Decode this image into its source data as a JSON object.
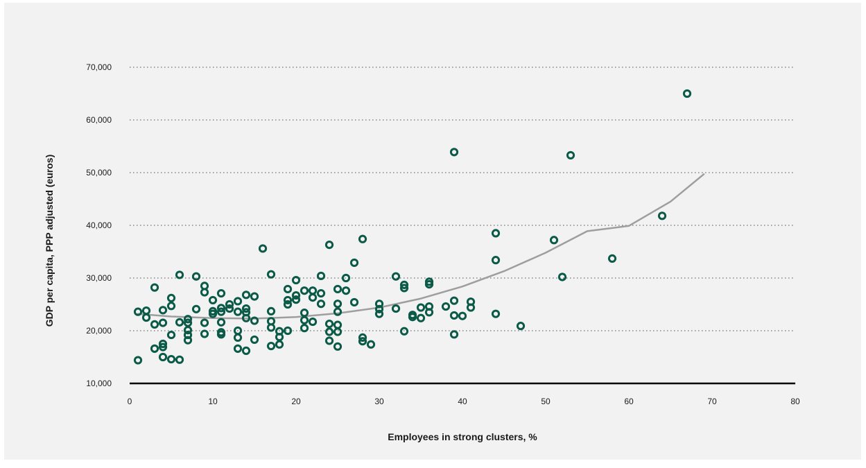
{
  "chart_data": {
    "type": "scatter",
    "xlabel": "Employees in strong clusters, %",
    "ylabel": "GDP per capita, PPP adjusted (euros)",
    "xlim": [
      0,
      80
    ],
    "ylim": [
      10000,
      70000
    ],
    "x_ticks": [
      0,
      10,
      20,
      30,
      40,
      50,
      60,
      70,
      80
    ],
    "y_ticks": [
      10000,
      20000,
      30000,
      40000,
      50000,
      60000,
      70000
    ],
    "x_tick_labels": [
      "0",
      "10",
      "20",
      "30",
      "40",
      "50",
      "60",
      "70",
      "80"
    ],
    "y_tick_labels": [
      "10,000",
      "20,000",
      "30,000",
      "40,000",
      "50,000",
      "60,000",
      "70,000"
    ],
    "grid": "horizontal dotted",
    "colors": {
      "points": "#0b5a47",
      "trend": "#9e9e9e",
      "panel": "#f2f2f2"
    },
    "series": [
      {
        "values": [
          [
            1,
            23600
          ],
          [
            1,
            14400
          ],
          [
            2,
            23800
          ],
          [
            2,
            22500
          ],
          [
            3,
            28200
          ],
          [
            3,
            21200
          ],
          [
            3,
            16600
          ],
          [
            4,
            23900
          ],
          [
            4,
            21500
          ],
          [
            4,
            17500
          ],
          [
            4,
            16900
          ],
          [
            4,
            15000
          ],
          [
            5,
            26200
          ],
          [
            5,
            24700
          ],
          [
            5,
            19200
          ],
          [
            5,
            14600
          ],
          [
            6,
            30600
          ],
          [
            6,
            21600
          ],
          [
            6,
            14500
          ],
          [
            7,
            22200
          ],
          [
            7,
            21500
          ],
          [
            7,
            20100
          ],
          [
            7,
            19200
          ],
          [
            7,
            18200
          ],
          [
            8,
            30300
          ],
          [
            8,
            24100
          ],
          [
            9,
            28500
          ],
          [
            9,
            27300
          ],
          [
            9,
            21500
          ],
          [
            9,
            19400
          ],
          [
            10,
            25800
          ],
          [
            10,
            23700
          ],
          [
            10,
            23200
          ],
          [
            11,
            27100
          ],
          [
            11,
            24300
          ],
          [
            11,
            23600
          ],
          [
            11,
            21600
          ],
          [
            11,
            19700
          ],
          [
            11,
            19300
          ],
          [
            12,
            25000
          ],
          [
            12,
            24200
          ],
          [
            13,
            25600
          ],
          [
            13,
            23600
          ],
          [
            13,
            20000
          ],
          [
            13,
            18700
          ],
          [
            13,
            16600
          ],
          [
            14,
            26800
          ],
          [
            14,
            24200
          ],
          [
            14,
            23500
          ],
          [
            14,
            22400
          ],
          [
            14,
            16200
          ],
          [
            15,
            26500
          ],
          [
            15,
            21900
          ],
          [
            15,
            18300
          ],
          [
            16,
            35600
          ],
          [
            17,
            30700
          ],
          [
            17,
            23700
          ],
          [
            17,
            21800
          ],
          [
            17,
            20600
          ],
          [
            17,
            17100
          ],
          [
            18,
            19900
          ],
          [
            18,
            18800
          ],
          [
            18,
            17400
          ],
          [
            19,
            27900
          ],
          [
            19,
            25800
          ],
          [
            19,
            25000
          ],
          [
            19,
            20000
          ],
          [
            20,
            29600
          ],
          [
            20,
            26700
          ],
          [
            20,
            25900
          ],
          [
            21,
            27600
          ],
          [
            21,
            23400
          ],
          [
            21,
            22000
          ],
          [
            21,
            20500
          ],
          [
            22,
            27600
          ],
          [
            22,
            26300
          ],
          [
            22,
            21700
          ],
          [
            23,
            30400
          ],
          [
            23,
            27100
          ],
          [
            23,
            25100
          ],
          [
            24,
            36300
          ],
          [
            24,
            21300
          ],
          [
            24,
            19800
          ],
          [
            24,
            18100
          ],
          [
            25,
            27900
          ],
          [
            25,
            25100
          ],
          [
            25,
            23600
          ],
          [
            25,
            21100
          ],
          [
            25,
            19800
          ],
          [
            25,
            17000
          ],
          [
            26,
            30000
          ],
          [
            26,
            27600
          ],
          [
            27,
            32900
          ],
          [
            27,
            25400
          ],
          [
            28,
            37400
          ],
          [
            28,
            18700
          ],
          [
            28,
            18000
          ],
          [
            29,
            17400
          ],
          [
            30,
            25100
          ],
          [
            30,
            24100
          ],
          [
            30,
            23200
          ],
          [
            32,
            30300
          ],
          [
            32,
            24200
          ],
          [
            33,
            28700
          ],
          [
            33,
            28100
          ],
          [
            33,
            19900
          ],
          [
            34,
            23000
          ],
          [
            34,
            22600
          ],
          [
            35,
            24400
          ],
          [
            35,
            22400
          ],
          [
            36,
            29300
          ],
          [
            36,
            28800
          ],
          [
            36,
            24600
          ],
          [
            36,
            23500
          ],
          [
            38,
            24600
          ],
          [
            39,
            53900
          ],
          [
            39,
            25700
          ],
          [
            39,
            22900
          ],
          [
            39,
            19300
          ],
          [
            40,
            22800
          ],
          [
            41,
            25500
          ],
          [
            41,
            24400
          ],
          [
            44,
            38500
          ],
          [
            44,
            33400
          ],
          [
            44,
            23200
          ],
          [
            47,
            20900
          ],
          [
            51,
            37200
          ],
          [
            52,
            30200
          ],
          [
            53,
            53300
          ],
          [
            58,
            33700
          ],
          [
            64,
            41800
          ],
          [
            67,
            65000
          ]
        ]
      }
    ],
    "trendline": {
      "x": [
        1,
        5,
        10,
        15,
        20,
        25,
        30,
        35,
        40,
        45,
        50,
        55,
        60,
        65,
        69
      ],
      "y": [
        23200,
        22700,
        22400,
        22300,
        22600,
        23300,
        24400,
        26100,
        28400,
        31300,
        34800,
        38900,
        39900,
        44500,
        49700
      ]
    }
  }
}
